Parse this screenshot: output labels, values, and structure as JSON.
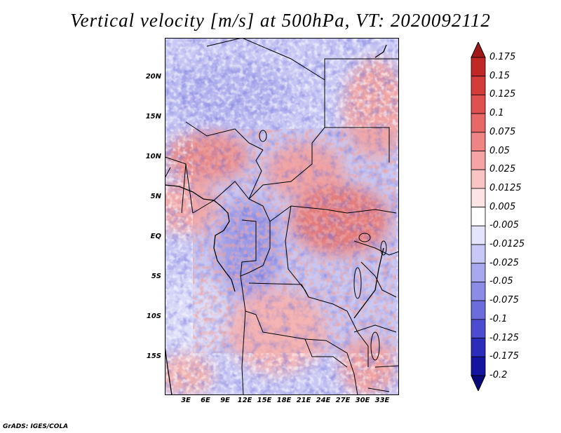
{
  "title": "Vertical velocity [m/s] at 500hPa, VT: 2020092112",
  "credit": "GrADS: IGES/COLA",
  "lat_labels": [
    "20N",
    "15N",
    "10N",
    "5N",
    "EQ",
    "5S",
    "10S",
    "15S"
  ],
  "lon_labels": [
    "3E",
    "6E",
    "9E",
    "12E",
    "15E",
    "18E",
    "21E",
    "24E",
    "27E",
    "30E",
    "33E"
  ],
  "colorbar": {
    "labels": [
      "0.175",
      "0.15",
      "0.125",
      "0.1",
      "0.075",
      "0.05",
      "0.025",
      "0.0125",
      "0.005",
      "-0.005",
      "-0.0125",
      "-0.025",
      "-0.05",
      "-0.075",
      "-0.1",
      "-0.125",
      "-0.175",
      "-0.2"
    ],
    "colors": [
      "#a01818",
      "#c02828",
      "#d43c3c",
      "#e05050",
      "#e86868",
      "#ee8484",
      "#f4a4a4",
      "#f8c4c4",
      "#fce4e4",
      "#ffffff",
      "#e4e4fc",
      "#c8c8f6",
      "#a8a8ee",
      "#8c8ce6",
      "#6c6cdc",
      "#4c4cd0",
      "#2c2cbc",
      "#1414a0",
      "#08087a"
    ]
  }
}
